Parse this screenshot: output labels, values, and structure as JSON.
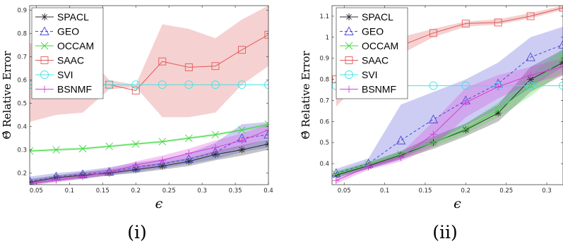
{
  "chart_data": [
    {
      "type": "line",
      "caption": "(i)",
      "xlabel": "ϵ",
      "ylabel": "Θ̂ Relative Error",
      "xlim": [
        0.04,
        0.4
      ],
      "ylim": [
        0.15,
        0.92
      ],
      "xticks": [
        "0.05",
        "0.1",
        "0.15",
        "0.2",
        "0.25",
        "0.3",
        "0.35",
        "0.4"
      ],
      "xtick_values": [
        0.05,
        0.1,
        0.15,
        0.2,
        0.25,
        0.3,
        0.35,
        0.4
      ],
      "yticks": [
        "0.2",
        "0.3",
        "0.4",
        "0.5",
        "0.6",
        "0.7",
        "0.8",
        "0.9"
      ],
      "ytick_values": [
        0.2,
        0.3,
        0.4,
        0.5,
        0.6,
        0.7,
        0.8,
        0.9
      ],
      "grid": false,
      "legend_position": "top-left",
      "x": [
        0.04,
        0.08,
        0.12,
        0.16,
        0.2,
        0.24,
        0.28,
        0.32,
        0.36,
        0.4
      ],
      "series": [
        {
          "name": "SPACL",
          "color": "#2b2b2b",
          "marker": "asterisk",
          "dash": "solid",
          "values": [
            0.16,
            0.18,
            0.19,
            0.2,
            0.215,
            0.23,
            0.25,
            0.28,
            0.3,
            0.325
          ],
          "band_lower": [
            0.15,
            0.165,
            0.175,
            0.19,
            0.2,
            0.215,
            0.23,
            0.255,
            0.275,
            0.3
          ],
          "band_upper": [
            0.175,
            0.19,
            0.205,
            0.215,
            0.23,
            0.245,
            0.265,
            0.295,
            0.32,
            0.345
          ]
        },
        {
          "name": "GEO",
          "color": "#4a4ad6",
          "marker": "triangle",
          "dash": "dashed",
          "values": [
            0.165,
            0.185,
            0.195,
            0.205,
            0.225,
            0.24,
            0.26,
            0.29,
            0.35,
            0.365
          ],
          "band_lower": [
            0.15,
            0.165,
            0.18,
            0.19,
            0.205,
            0.22,
            0.24,
            0.26,
            0.29,
            0.31
          ],
          "band_upper": [
            0.185,
            0.2,
            0.21,
            0.225,
            0.245,
            0.26,
            0.285,
            0.33,
            0.41,
            0.42
          ]
        },
        {
          "name": "OCCAM",
          "color": "#3fd83f",
          "marker": "x",
          "dash": "solid",
          "values": [
            0.295,
            0.3,
            0.305,
            0.315,
            0.325,
            0.335,
            0.35,
            0.365,
            0.385,
            0.41
          ],
          "band_lower": [
            0.29,
            0.295,
            0.3,
            0.31,
            0.32,
            0.33,
            0.345,
            0.36,
            0.38,
            0.4
          ],
          "band_upper": [
            0.3,
            0.305,
            0.31,
            0.32,
            0.33,
            0.34,
            0.355,
            0.37,
            0.39,
            0.415
          ]
        },
        {
          "name": "SAAC",
          "color": "#e05a5a",
          "marker": "square",
          "dash": "solid",
          "values": [
            0.58,
            0.585,
            0.58,
            0.58,
            0.555,
            0.68,
            0.655,
            0.66,
            0.73,
            0.795
          ],
          "band_lower": [
            0.42,
            0.45,
            0.46,
            0.56,
            0.57,
            0.44,
            0.44,
            0.46,
            0.58,
            0.66
          ],
          "band_upper": [
            0.76,
            0.7,
            0.73,
            0.6,
            0.58,
            0.84,
            0.82,
            0.78,
            0.86,
            0.92
          ]
        },
        {
          "name": "SVI",
          "color": "#3fe4e4",
          "marker": "circle",
          "dash": "solid",
          "values": [
            0.58,
            0.58,
            0.58,
            0.58,
            0.58,
            0.58,
            0.58,
            0.58,
            0.58,
            0.58
          ]
        },
        {
          "name": "BSNMF",
          "color": "#d63fd6",
          "marker": "plus",
          "dash": "solid",
          "values": [
            0.155,
            0.17,
            0.185,
            0.205,
            0.235,
            0.255,
            0.285,
            0.31,
            0.34,
            0.385
          ],
          "band_lower": [
            0.145,
            0.16,
            0.175,
            0.19,
            0.215,
            0.235,
            0.26,
            0.285,
            0.31,
            0.35
          ],
          "band_upper": [
            0.17,
            0.185,
            0.2,
            0.22,
            0.25,
            0.275,
            0.305,
            0.34,
            0.37,
            0.41
          ]
        }
      ]
    },
    {
      "type": "line",
      "caption": "(ii)",
      "xlabel": "ϵ",
      "ylabel": "Θ̂ Relative Error",
      "xlim": [
        0.035,
        0.32
      ],
      "ylim": [
        0.3,
        1.15
      ],
      "xticks": [
        "0.05",
        "0.1",
        "0.15",
        "0.2",
        "0.25",
        "0.3"
      ],
      "xtick_values": [
        0.05,
        0.1,
        0.15,
        0.2,
        0.25,
        0.3
      ],
      "yticks": [
        "0.4",
        "0.5",
        "0.6",
        "0.7",
        "0.8",
        "0.9",
        "1",
        "1.1"
      ],
      "ytick_values": [
        0.4,
        0.5,
        0.6,
        0.7,
        0.8,
        0.9,
        1.0,
        1.1
      ],
      "grid": false,
      "legend_position": "top-left",
      "x": [
        0.04,
        0.08,
        0.12,
        0.16,
        0.2,
        0.24,
        0.28,
        0.32
      ],
      "series": [
        {
          "name": "SPACL",
          "color": "#2b2b2b",
          "marker": "asterisk",
          "dash": "solid",
          "values": [
            0.345,
            0.39,
            0.44,
            0.5,
            0.56,
            0.64,
            0.8,
            0.88
          ],
          "band_lower": [
            0.33,
            0.375,
            0.42,
            0.47,
            0.53,
            0.6,
            0.74,
            0.82
          ],
          "band_upper": [
            0.36,
            0.405,
            0.46,
            0.53,
            0.59,
            0.68,
            0.86,
            0.94
          ]
        },
        {
          "name": "GEO",
          "color": "#4a4ad6",
          "marker": "triangle",
          "dash": "dashed",
          "values": [
            0.355,
            0.4,
            0.51,
            0.61,
            0.7,
            0.78,
            0.905,
            0.965
          ],
          "band_lower": [
            0.335,
            0.375,
            0.42,
            0.5,
            0.58,
            0.66,
            0.76,
            0.86
          ],
          "band_upper": [
            0.375,
            0.425,
            0.68,
            0.74,
            0.8,
            0.88,
            1.0,
            1.05
          ]
        },
        {
          "name": "OCCAM",
          "color": "#3fd83f",
          "marker": "x",
          "dash": "solid",
          "values": [
            0.35,
            0.395,
            0.445,
            0.5,
            0.565,
            0.655,
            0.77,
            0.9
          ],
          "band_lower": [
            0.335,
            0.38,
            0.43,
            0.48,
            0.54,
            0.62,
            0.72,
            0.84
          ],
          "band_upper": [
            0.365,
            0.41,
            0.46,
            0.52,
            0.59,
            0.69,
            0.82,
            0.95
          ]
        },
        {
          "name": "SAAC",
          "color": "#e05a5a",
          "marker": "square",
          "dash": "solid",
          "values": [
            0.8,
            0.9,
            0.96,
            1.02,
            1.065,
            1.07,
            1.1,
            1.14
          ],
          "band_lower": [
            0.67,
            0.83,
            0.92,
            1.0,
            1.05,
            1.06,
            1.09,
            1.13
          ],
          "band_upper": [
            0.84,
            0.94,
            1.0,
            1.04,
            1.075,
            1.085,
            1.115,
            1.15
          ]
        },
        {
          "name": "SVI",
          "color": "#3fe4e4",
          "marker": "circle",
          "dash": "solid",
          "values": [
            0.77,
            0.77,
            0.77,
            0.77,
            0.77,
            0.77,
            0.77,
            0.77
          ]
        },
        {
          "name": "BSNMF",
          "color": "#d63fd6",
          "marker": "plus",
          "dash": "solid",
          "values": [
            0.32,
            0.385,
            0.43,
            0.54,
            0.69,
            0.765,
            0.82,
            0.86
          ],
          "band_lower": [
            0.305,
            0.37,
            0.41,
            0.48,
            0.62,
            0.71,
            0.78,
            0.82
          ],
          "band_upper": [
            0.335,
            0.4,
            0.45,
            0.6,
            0.76,
            0.82,
            0.86,
            0.9
          ]
        }
      ]
    }
  ]
}
